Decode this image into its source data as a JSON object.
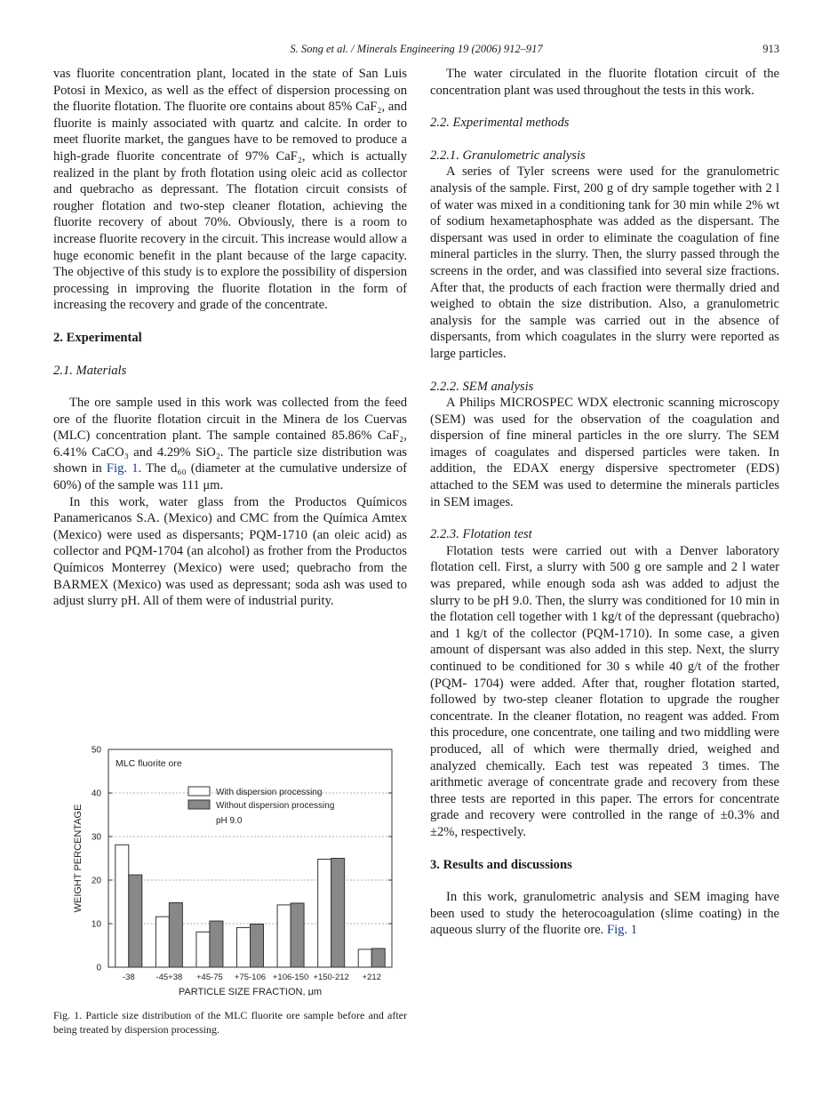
{
  "header": {
    "running_title": "S. Song et al. / Minerals Engineering 19 (2006) 912–917",
    "page_number": "913"
  },
  "left": {
    "p1": "vas fluorite concentration plant, located in the state of San Luis Potosi in Mexico, as well as the effect of dispersion processing on the fluorite flotation. The fluorite ore contains about 85% CaF₂, and fluorite is mainly associated with quartz and calcite. In order to meet fluorite market, the gangues have to be removed to produce a high-grade fluorite concentrate of 97% CaF₂, which is actually realized in the plant by froth flotation using oleic acid as collector and quebracho as depressant. The flotation circuit consists of rougher flotation and two-step cleaner flotation, achieving the fluorite recovery of about 70%. Obviously, there is a room to increase fluorite recovery in the circuit. This increase would allow a huge economic benefit in the plant because of the large capacity. The objective of this study is to explore the possibility of dispersion processing in improving the fluorite flotation in the form of increasing the recovery and grade of the concentrate.",
    "section2": "2. Experimental",
    "sub21": "2.1. Materials",
    "p2a": "The ore sample used in this work was collected from the feed ore of the fluorite flotation circuit in the Minera de los Cuervas (MLC) concentration plant. The sample contained 85.86% CaF₂, 6.41% CaCO₃ and 4.29% SiO₂. The particle size distribution was shown in ",
    "p2link": "Fig. 1",
    "p2b": ". The d₆₀ (diameter at the cumulative undersize of 60%) of the sample was 111 μm.",
    "p3": "In this work, water glass from the Productos Químicos Panamericanos S.A. (Mexico) and CMC from the Química Amtex (Mexico) were used as dispersants; PQM-1710 (an oleic acid) as collector and PQM-1704 (an alcohol) as frother from the Productos Químicos Monterrey (Mexico) were used; quebracho from the BARMEX (Mexico) was used as depressant; soda ash was used to adjust slurry pH. All of them were of industrial purity.",
    "caption": "Fig. 1. Particle size distribution of the MLC fluorite ore sample before and after being treated by dispersion processing."
  },
  "right": {
    "p1": "The water circulated in the fluorite flotation circuit of the concentration plant was used throughout the tests in this work.",
    "sub22": "2.2. Experimental methods",
    "sub221": "2.2.1. Granulometric analysis",
    "p221": "A series of Tyler screens were used for the granulometric analysis of the sample. First, 200 g of dry sample together with 2 l of water was mixed in a conditioning tank for 30 min while 2% wt of sodium hexametaphosphate was added as the dispersant. The dispersant was used in order to eliminate the coagulation of fine mineral particles in the slurry. Then, the slurry passed through the screens in the order, and was classified into several size fractions. After that, the products of each fraction were thermally dried and weighed to obtain the size distribution. Also, a granulometric analysis for the sample was carried out in the absence of dispersants, from which coagulates in the slurry were reported as large particles.",
    "sub222": "2.2.2. SEM analysis",
    "p222": "A Philips MICROSPEC WDX electronic scanning microscopy (SEM) was used for the observation of the coagulation and dispersion of fine mineral particles in the ore slurry. The SEM images of coagulates and dispersed particles were taken. In addition, the EDAX energy dispersive spectrometer (EDS) attached to the SEM was used to determine the minerals particles in SEM images.",
    "sub223": "2.2.3. Flotation test",
    "p223": "Flotation tests were carried out with a Denver laboratory flotation cell. First, a slurry with 500 g ore sample and 2 l water was prepared, while enough soda ash was added to adjust the slurry to be pH 9.0. Then, the slurry was conditioned for 10 min in the flotation cell together with 1 kg/t of the depressant (quebracho) and 1 kg/t of the collector (PQM-1710). In some case, a given amount of dispersant was also added in this step. Next, the slurry continued to be conditioned for 30 s while 40 g/t of the frother (PQM- 1704) were added. After that, rougher flotation started, followed by two-step cleaner flotation to upgrade the rougher concentrate. In the cleaner flotation, no reagent was added. From this procedure, one concentrate, one tailing and two middling were produced, all of which were thermally dried, weighed and analyzed chemically. Each test was repeated 3 times. The arithmetic average of concentrate grade and recovery from these three tests are reported in this paper. The errors for concentrate grade and recovery were controlled in the range of ±0.3% and ±2%, respectively.",
    "section3": "3. Results and discussions",
    "p3a": "In this work, granulometric analysis and SEM imaging have been used to study the heterocoagulation (slime coating) in the aqueous slurry of the fluorite ore. ",
    "p3link": "Fig. 1"
  },
  "chart_data": {
    "type": "bar",
    "annotation": "MLC fluorite ore",
    "legend_note": "pH 9.0",
    "legend_position": "top-center",
    "xlabel": "PARTICLE SIZE FRACTION, μm",
    "ylabel": "WEIGHT PERCENTAGE",
    "ylim": [
      0,
      50
    ],
    "yticks": [
      "0",
      "10",
      "20",
      "30",
      "40",
      "50"
    ],
    "grid": "horizontal dashed",
    "categories": [
      "-38",
      "-45+38",
      "+45-75",
      "+75-106",
      "+106-150",
      "+150-212",
      "+212"
    ],
    "series": [
      {
        "name": "With dispersion processing",
        "color": "#ffffff",
        "values": [
          28.1,
          11.6,
          8.1,
          9.1,
          14.3,
          24.8,
          4.1
        ]
      },
      {
        "name": "Without dispersion processing",
        "color": "#888888",
        "values": [
          21.2,
          14.8,
          10.6,
          9.9,
          14.7,
          25.0,
          4.3
        ]
      }
    ]
  }
}
